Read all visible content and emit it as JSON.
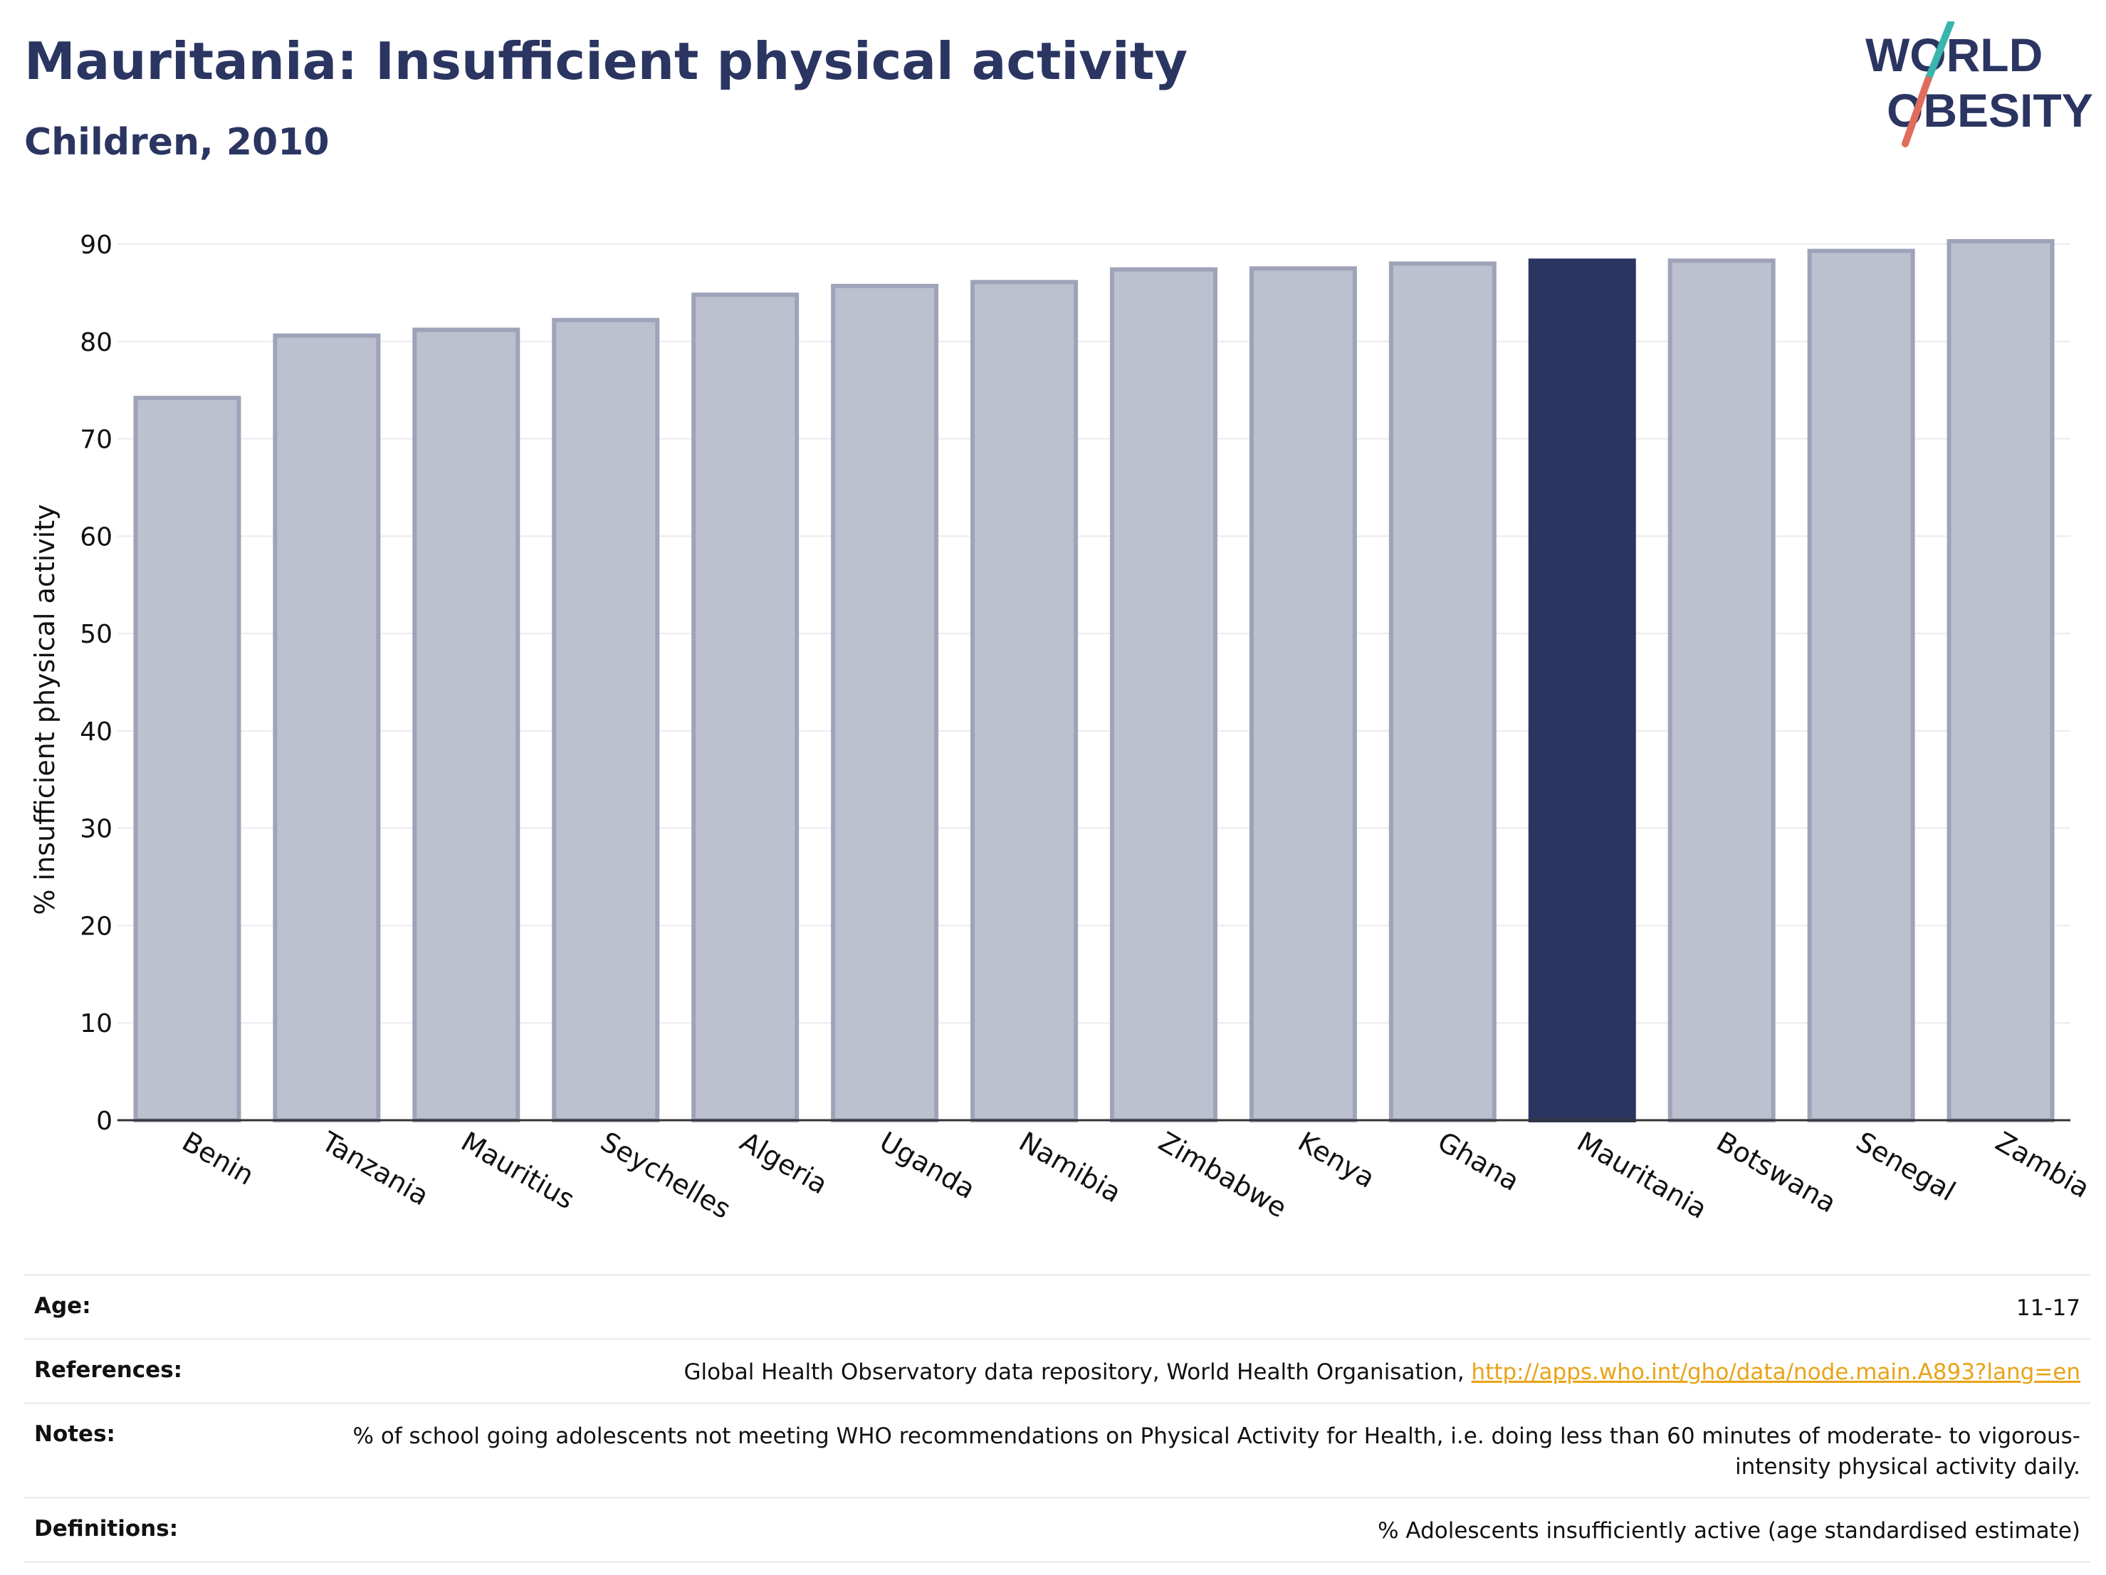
{
  "header": {
    "title": "Mauritania: Insufficient physical activity",
    "subtitle": "Children, 2010"
  },
  "logo": {
    "line1": "WORLD",
    "line2": "OBESITY",
    "accent_colors": [
      "#3ab4ae",
      "#e06c5c"
    ]
  },
  "chart_data": {
    "type": "bar",
    "categories": [
      "Benin",
      "Tanzania",
      "Mauritius",
      "Seychelles",
      "Algeria",
      "Uganda",
      "Namibia",
      "Zimbabwe",
      "Kenya",
      "Ghana",
      "Mauritania",
      "Botswana",
      "Senegal",
      "Zambia"
    ],
    "values": [
      74.2,
      80.6,
      81.2,
      82.2,
      84.8,
      85.7,
      86.1,
      87.4,
      87.5,
      88.0,
      88.3,
      88.3,
      89.3,
      90.3
    ],
    "highlight": "Mauritania",
    "ylabel": "% insufficient physical activity",
    "xlabel": "",
    "ylim": [
      0,
      90
    ],
    "yticks": [
      0,
      10,
      20,
      30,
      40,
      50,
      60,
      70,
      80,
      90
    ],
    "grid": true,
    "colors": {
      "bar_fill": "#bdc0ce",
      "bar_stroke": "#9ea3b9",
      "highlight_fill": "#2b3561",
      "grid": "#ebebef",
      "axis": "#333333"
    }
  },
  "details": {
    "age": {
      "label": "Age:",
      "value": "11-17"
    },
    "references": {
      "label": "References:",
      "text": "Global Health Observatory data repository, World Health Organisation, ",
      "link": "http://apps.who.int/gho/data/node.main.A893?lang=en"
    },
    "notes": {
      "label": "Notes:",
      "value": "% of school going adolescents not meeting WHO recommendations on Physical Activity for Health, i.e. doing less than 60 minutes of moderate- to vigorous-intensity physical activity daily."
    },
    "definitions": {
      "label": "Definitions:",
      "value": "% Adolescents insufficiently active (age standardised estimate)"
    }
  }
}
